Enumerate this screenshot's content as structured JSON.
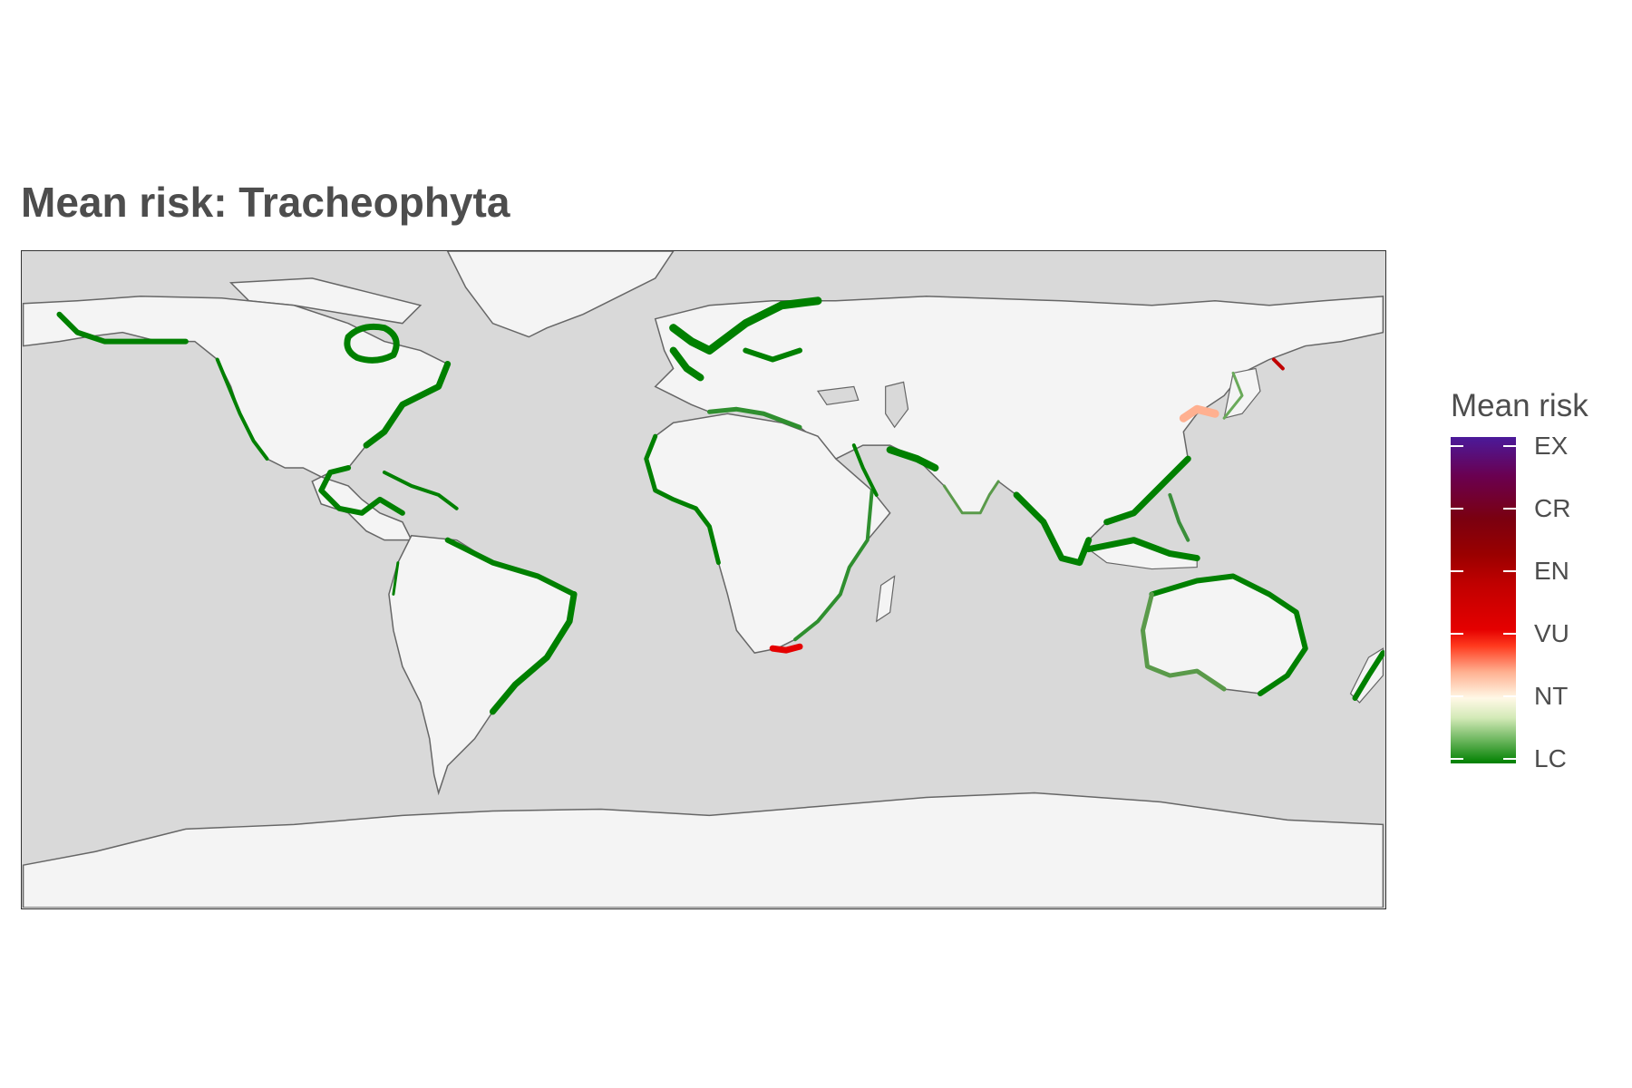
{
  "title": "Mean risk: Tracheophyta",
  "legend": {
    "title": "Mean risk",
    "labels": [
      "EX",
      "CR",
      "EN",
      "VU",
      "NT",
      "LC"
    ],
    "colors": {
      "LC": "#008000",
      "NT": "#fff8e6",
      "VU": "#e50000",
      "EN": "#c00000",
      "CR": "#8b0000",
      "EX": "#4b1a9a"
    }
  },
  "map": {
    "projection": "equirectangular",
    "ocean_color": "#d9d9d9",
    "land_color": "#f4f4f4",
    "coastline_color": "#666666",
    "risk_regions": [
      {
        "region": "Alaska coast",
        "category": "LC"
      },
      {
        "region": "Hudson Bay",
        "category": "LC"
      },
      {
        "region": "North American east coast",
        "category": "LC"
      },
      {
        "region": "Gulf of Mexico / Caribbean",
        "category": "LC"
      },
      {
        "region": "South American east coast",
        "category": "LC"
      },
      {
        "region": "Northern Europe / Scandinavia",
        "category": "LC"
      },
      {
        "region": "Mediterranean",
        "category": "LC"
      },
      {
        "region": "West Africa coast",
        "category": "LC"
      },
      {
        "region": "East Africa coast",
        "category": "LC"
      },
      {
        "region": "Persian Gulf / Red Sea",
        "category": "LC"
      },
      {
        "region": "South Asia coast",
        "category": "LC"
      },
      {
        "region": "Southeast Asia",
        "category": "LC"
      },
      {
        "region": "China / Korea coast",
        "category": "NT"
      },
      {
        "region": "Japan",
        "category": "LC"
      },
      {
        "region": "Kamchatka",
        "category": "VU"
      },
      {
        "region": "Australia coast",
        "category": "LC"
      },
      {
        "region": "New Zealand",
        "category": "LC"
      },
      {
        "region": "South Africa southwest coast",
        "category": "EN"
      }
    ]
  }
}
